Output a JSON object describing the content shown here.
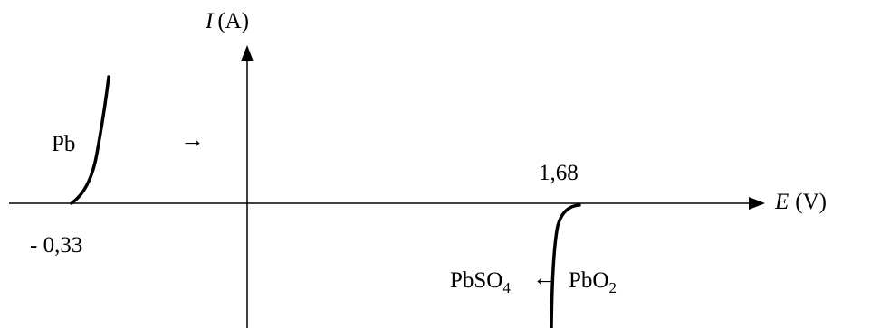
{
  "y_axis": {
    "symbol": "I",
    "unit": "(A)"
  },
  "x_axis": {
    "symbol": "E",
    "unit": "(V)"
  },
  "curves": {
    "anodic": {
      "species": "Pb",
      "potential": "- 0,33",
      "direction_arrow": "→"
    },
    "cathodic": {
      "potential": "1,68",
      "reactant": "PbO",
      "reactant_sub": "2",
      "arrow": "←",
      "product": "PbSO",
      "product_sub": "4"
    }
  },
  "colors": {
    "ink": "#000000",
    "background": "#ffffff"
  }
}
